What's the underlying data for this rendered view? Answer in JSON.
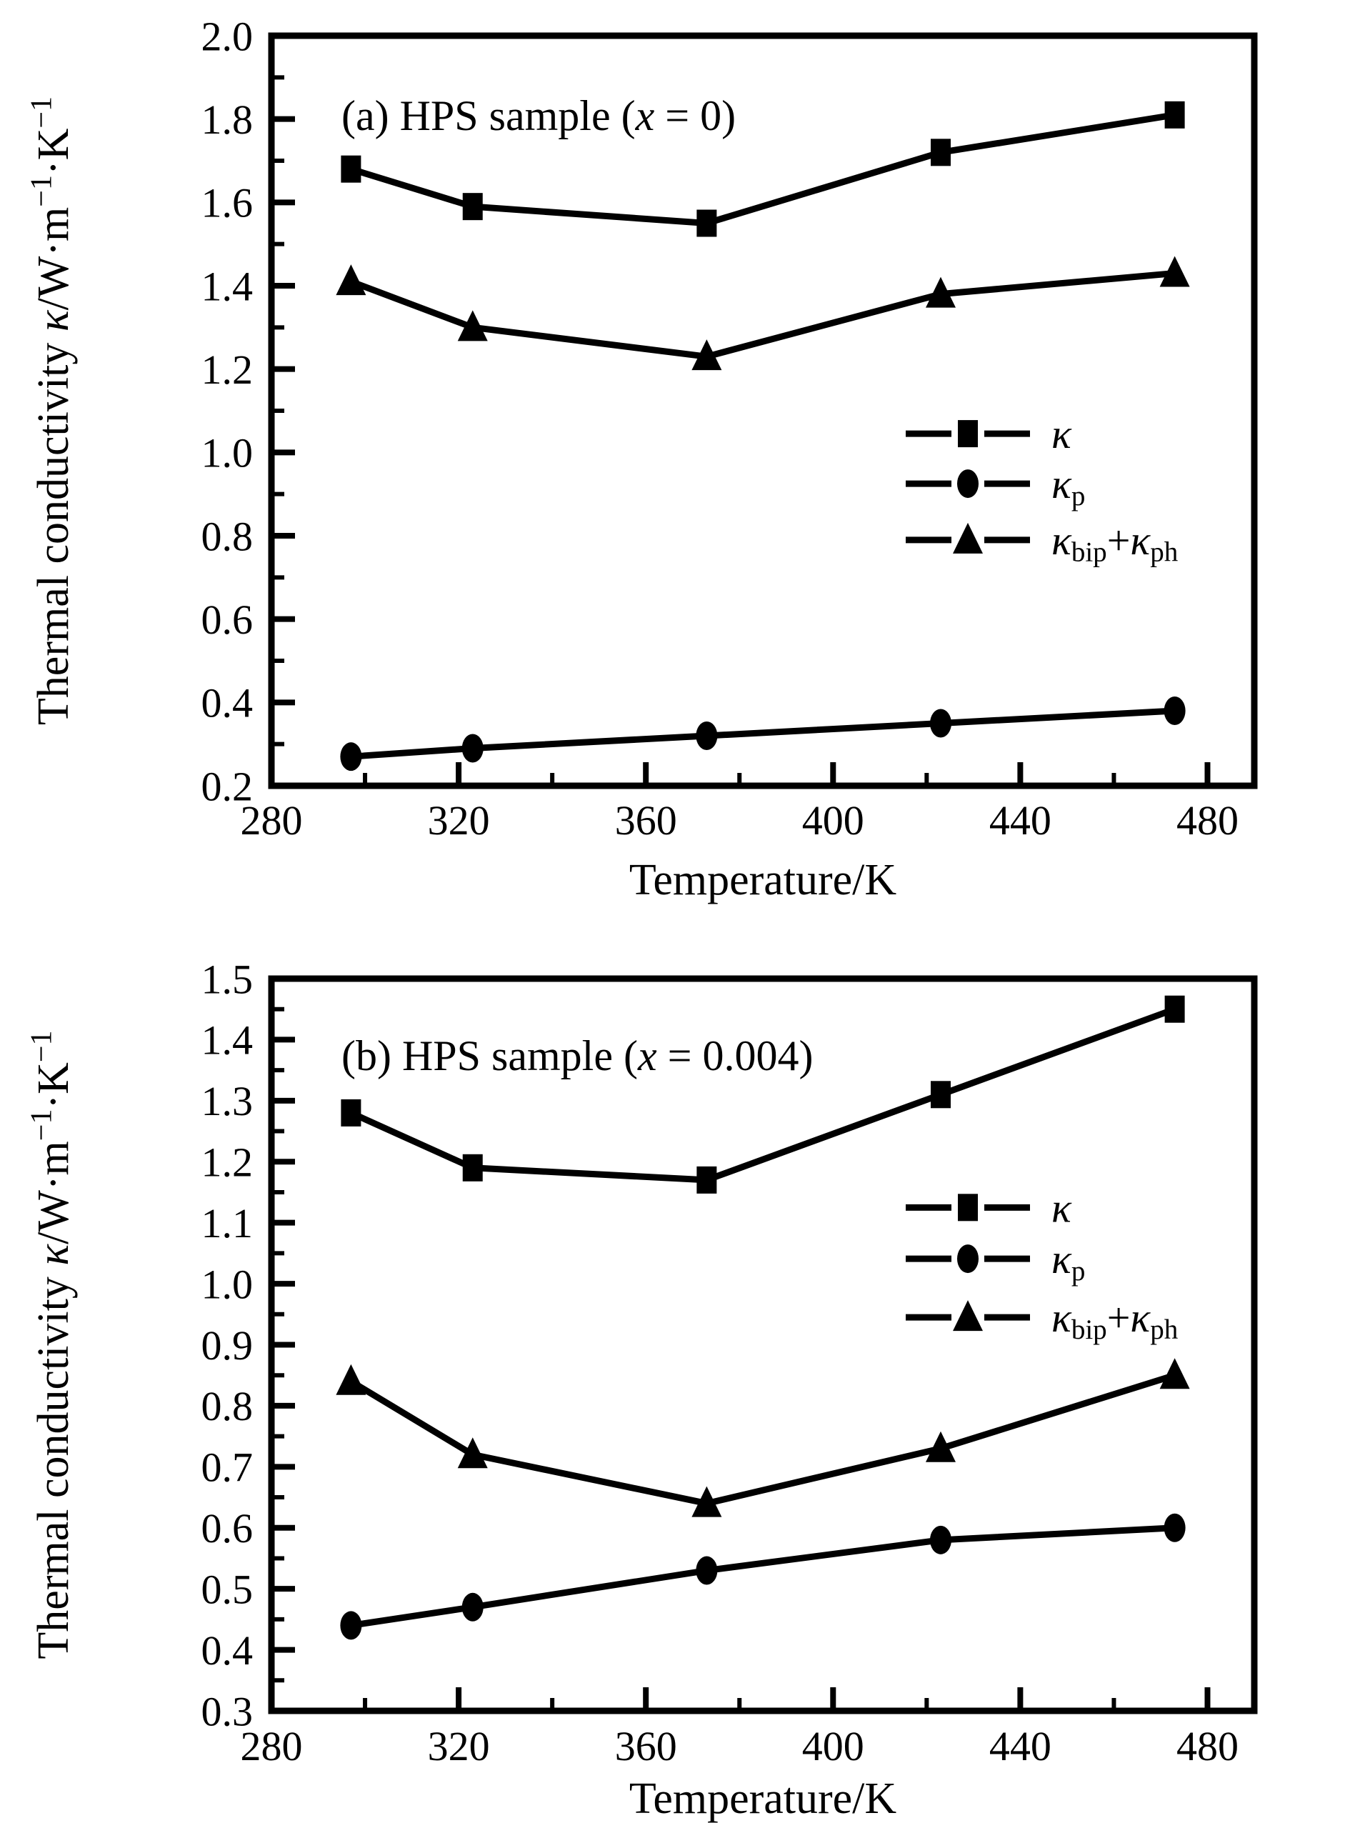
{
  "figure": {
    "background": "#ffffff",
    "ink_color": "#000000",
    "x_axis_title": "Temperature/K",
    "y_axis_title_segments": [
      {
        "t": "Thermal conductivity "
      },
      {
        "t": "κ",
        "it": true
      },
      {
        "t": "/W·m"
      },
      {
        "t": "−1",
        "sup": true
      },
      {
        "t": "·K"
      },
      {
        "t": "−1",
        "sup": true
      }
    ]
  },
  "chart_data": [
    {
      "type": "line",
      "panel": "a",
      "title_segments": [
        {
          "t": "(a) HPS sample ("
        },
        {
          "t": "x",
          "it": true
        },
        {
          "t": " = 0)"
        }
      ],
      "xlabel": "Temperature/K",
      "ylabel": "Thermal conductivity κ/W·m−1·K−1",
      "x": [
        297,
        323,
        373,
        423,
        473
      ],
      "series": [
        {
          "name": "kappa",
          "marker": "square",
          "values": [
            1.68,
            1.59,
            1.55,
            1.72,
            1.81
          ],
          "label_segments": [
            {
              "t": "κ",
              "it": true
            }
          ]
        },
        {
          "name": "kappa-p",
          "marker": "circle",
          "values": [
            0.27,
            0.29,
            0.32,
            0.35,
            0.38
          ],
          "label_segments": [
            {
              "t": "κ",
              "it": true
            },
            {
              "t": "p",
              "sub": true
            }
          ]
        },
        {
          "name": "kappa-bip-plus-kappa-ph",
          "marker": "triangle",
          "values": [
            1.41,
            1.3,
            1.23,
            1.38,
            1.43
          ],
          "label_segments": [
            {
              "t": "κ",
              "it": true
            },
            {
              "t": "bip",
              "sub": true
            },
            {
              "t": "+"
            },
            {
              "t": "κ",
              "it": true
            },
            {
              "t": "ph",
              "sub": true
            }
          ]
        }
      ],
      "xlim": [
        280,
        490
      ],
      "ylim": [
        0.2,
        2.0
      ],
      "x_major_ticks": [
        280,
        320,
        360,
        400,
        440,
        480
      ],
      "x_minor_step": 20,
      "y_major_step": 0.2,
      "y_minor_step": 0.1,
      "y_tick_decimals": 1,
      "grid": false,
      "legend_position": "center-right",
      "legend_rows_data_y": [
        1.045,
        0.925,
        0.79
      ]
    },
    {
      "type": "line",
      "panel": "b",
      "title_segments": [
        {
          "t": "(b) HPS sample ("
        },
        {
          "t": "x",
          "it": true
        },
        {
          "t": " = 0.004)"
        }
      ],
      "xlabel": "Temperature/K",
      "ylabel": "Thermal conductivity κ/W·m−1·K−1",
      "x": [
        297,
        323,
        373,
        423,
        473
      ],
      "series": [
        {
          "name": "kappa",
          "marker": "square",
          "values": [
            1.28,
            1.19,
            1.17,
            1.31,
            1.45
          ],
          "label_segments": [
            {
              "t": "κ",
              "it": true
            }
          ]
        },
        {
          "name": "kappa-p",
          "marker": "circle",
          "values": [
            0.44,
            0.47,
            0.53,
            0.58,
            0.6
          ],
          "label_segments": [
            {
              "t": "κ",
              "it": true
            },
            {
              "t": "p",
              "sub": true
            }
          ]
        },
        {
          "name": "kappa-bip-plus-kappa-ph",
          "marker": "triangle",
          "values": [
            0.84,
            0.72,
            0.64,
            0.73,
            0.85
          ],
          "label_segments": [
            {
              "t": "κ",
              "it": true
            },
            {
              "t": "bip",
              "sub": true
            },
            {
              "t": "+"
            },
            {
              "t": "κ",
              "it": true
            },
            {
              "t": "ph",
              "sub": true
            }
          ]
        }
      ],
      "xlim": [
        280,
        490
      ],
      "ylim": [
        0.3,
        1.5
      ],
      "x_major_ticks": [
        280,
        320,
        360,
        400,
        440,
        480
      ],
      "x_minor_step": 20,
      "y_major_step": 0.1,
      "y_minor_step": 0.05,
      "y_tick_decimals": 1,
      "grid": false,
      "legend_position": "center-right",
      "legend_rows_data_y": [
        1.125,
        1.041,
        0.945
      ]
    }
  ]
}
